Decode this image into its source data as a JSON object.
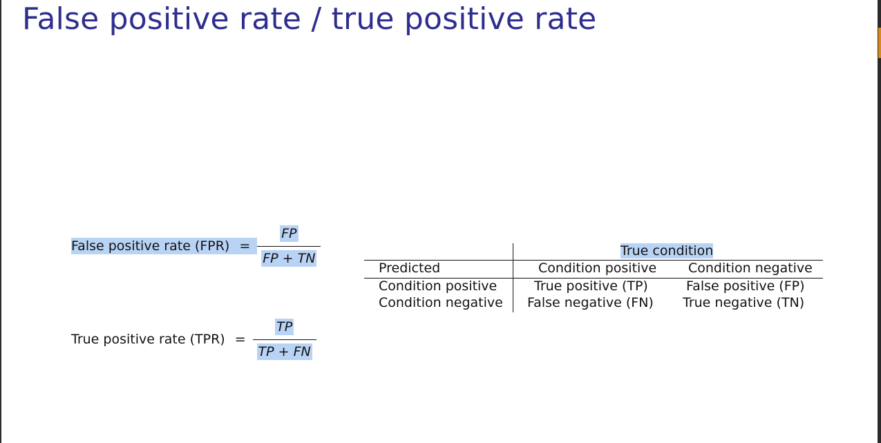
{
  "slide": {
    "title": "False positive rate / true positive rate"
  },
  "formulas": {
    "fpr": {
      "label": "False positive rate (FPR)",
      "equals": "=",
      "numerator": "FP",
      "denominator": "FP + TN"
    },
    "tpr": {
      "label": "True positive rate (TPR)",
      "equals": "=",
      "numerator": "TP",
      "denominator": "TP + FN"
    }
  },
  "confusion_table": {
    "group_header": "True condition",
    "row_header": "Predicted",
    "columns": [
      "Condition positive",
      "Condition negative"
    ],
    "rows": [
      {
        "label": "Condition positive",
        "cells": [
          "True positive (TP)",
          "False positive (FP)"
        ]
      },
      {
        "label": "Condition negative",
        "cells": [
          "False negative (FN)",
          "True negative (TN)"
        ]
      }
    ]
  },
  "colors": {
    "title": "#2e2e8f",
    "highlight": "#b9d3f5",
    "edge_accent": "#d98a1a"
  }
}
